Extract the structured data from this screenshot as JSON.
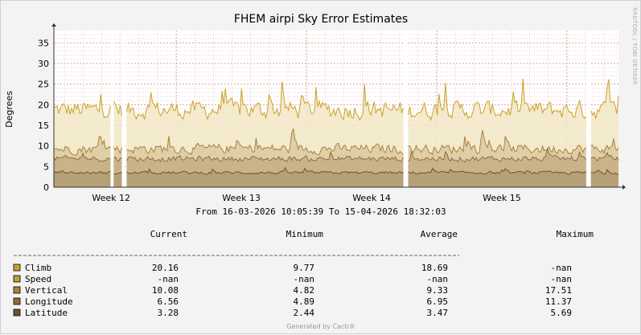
{
  "chart_data": {
    "type": "area",
    "title": "FHEM airpi Sky Error Estimates",
    "ylabel": "Degrees",
    "xlabel": "",
    "ylim": [
      0,
      38
    ],
    "y_ticks": [
      0,
      5,
      10,
      15,
      20,
      25,
      30,
      35
    ],
    "x_ticks": [
      "Week 12",
      "Week 13",
      "Week 14",
      "Week 15"
    ],
    "date_range": "From 16-03-2026 10:05:39 To 15-04-2026 18:32:03",
    "watermark": "RRDTOOL / TOBI OETIKER",
    "footer": "Generated by Cacti®",
    "grid": true,
    "gaps": [
      [
        "2026-03-19 12:00",
        "2026-03-19 14:00"
      ],
      [
        "2026-03-20 02:00",
        "2026-03-20 06:00"
      ],
      [
        "2026-04-04 06:00",
        "2026-04-04 10:00"
      ],
      [
        "2026-04-14 01:00",
        "2026-04-14 06:00"
      ]
    ],
    "legend_headers": {
      "current": "Current",
      "minimum": "Minimum",
      "average": "Average",
      "maximum": "Maximum"
    },
    "series": [
      {
        "name": "Climb",
        "color": "#c9a227",
        "current": "20.16",
        "minimum": "9.77",
        "average": "18.69",
        "maximum": "-nan",
        "typical": 18.7
      },
      {
        "name": "Speed",
        "color": "#b9a23a",
        "current": "-nan",
        "minimum": "-nan",
        "average": "-nan",
        "maximum": "-nan",
        "typical": null
      },
      {
        "name": "Vertical",
        "color": "#a8843a",
        "current": "10.08",
        "minimum": "4.82",
        "average": "9.33",
        "maximum": "17.51",
        "typical": 9.3
      },
      {
        "name": "Longitude",
        "color": "#8c7040",
        "current": "6.56",
        "minimum": "4.89",
        "average": "6.95",
        "maximum": "11.37",
        "typical": 6.9
      },
      {
        "name": "Latitude",
        "color": "#6e5232",
        "current": "3.28",
        "minimum": "2.44",
        "average": "3.47",
        "maximum": "5.69",
        "typical": 3.5
      }
    ]
  }
}
